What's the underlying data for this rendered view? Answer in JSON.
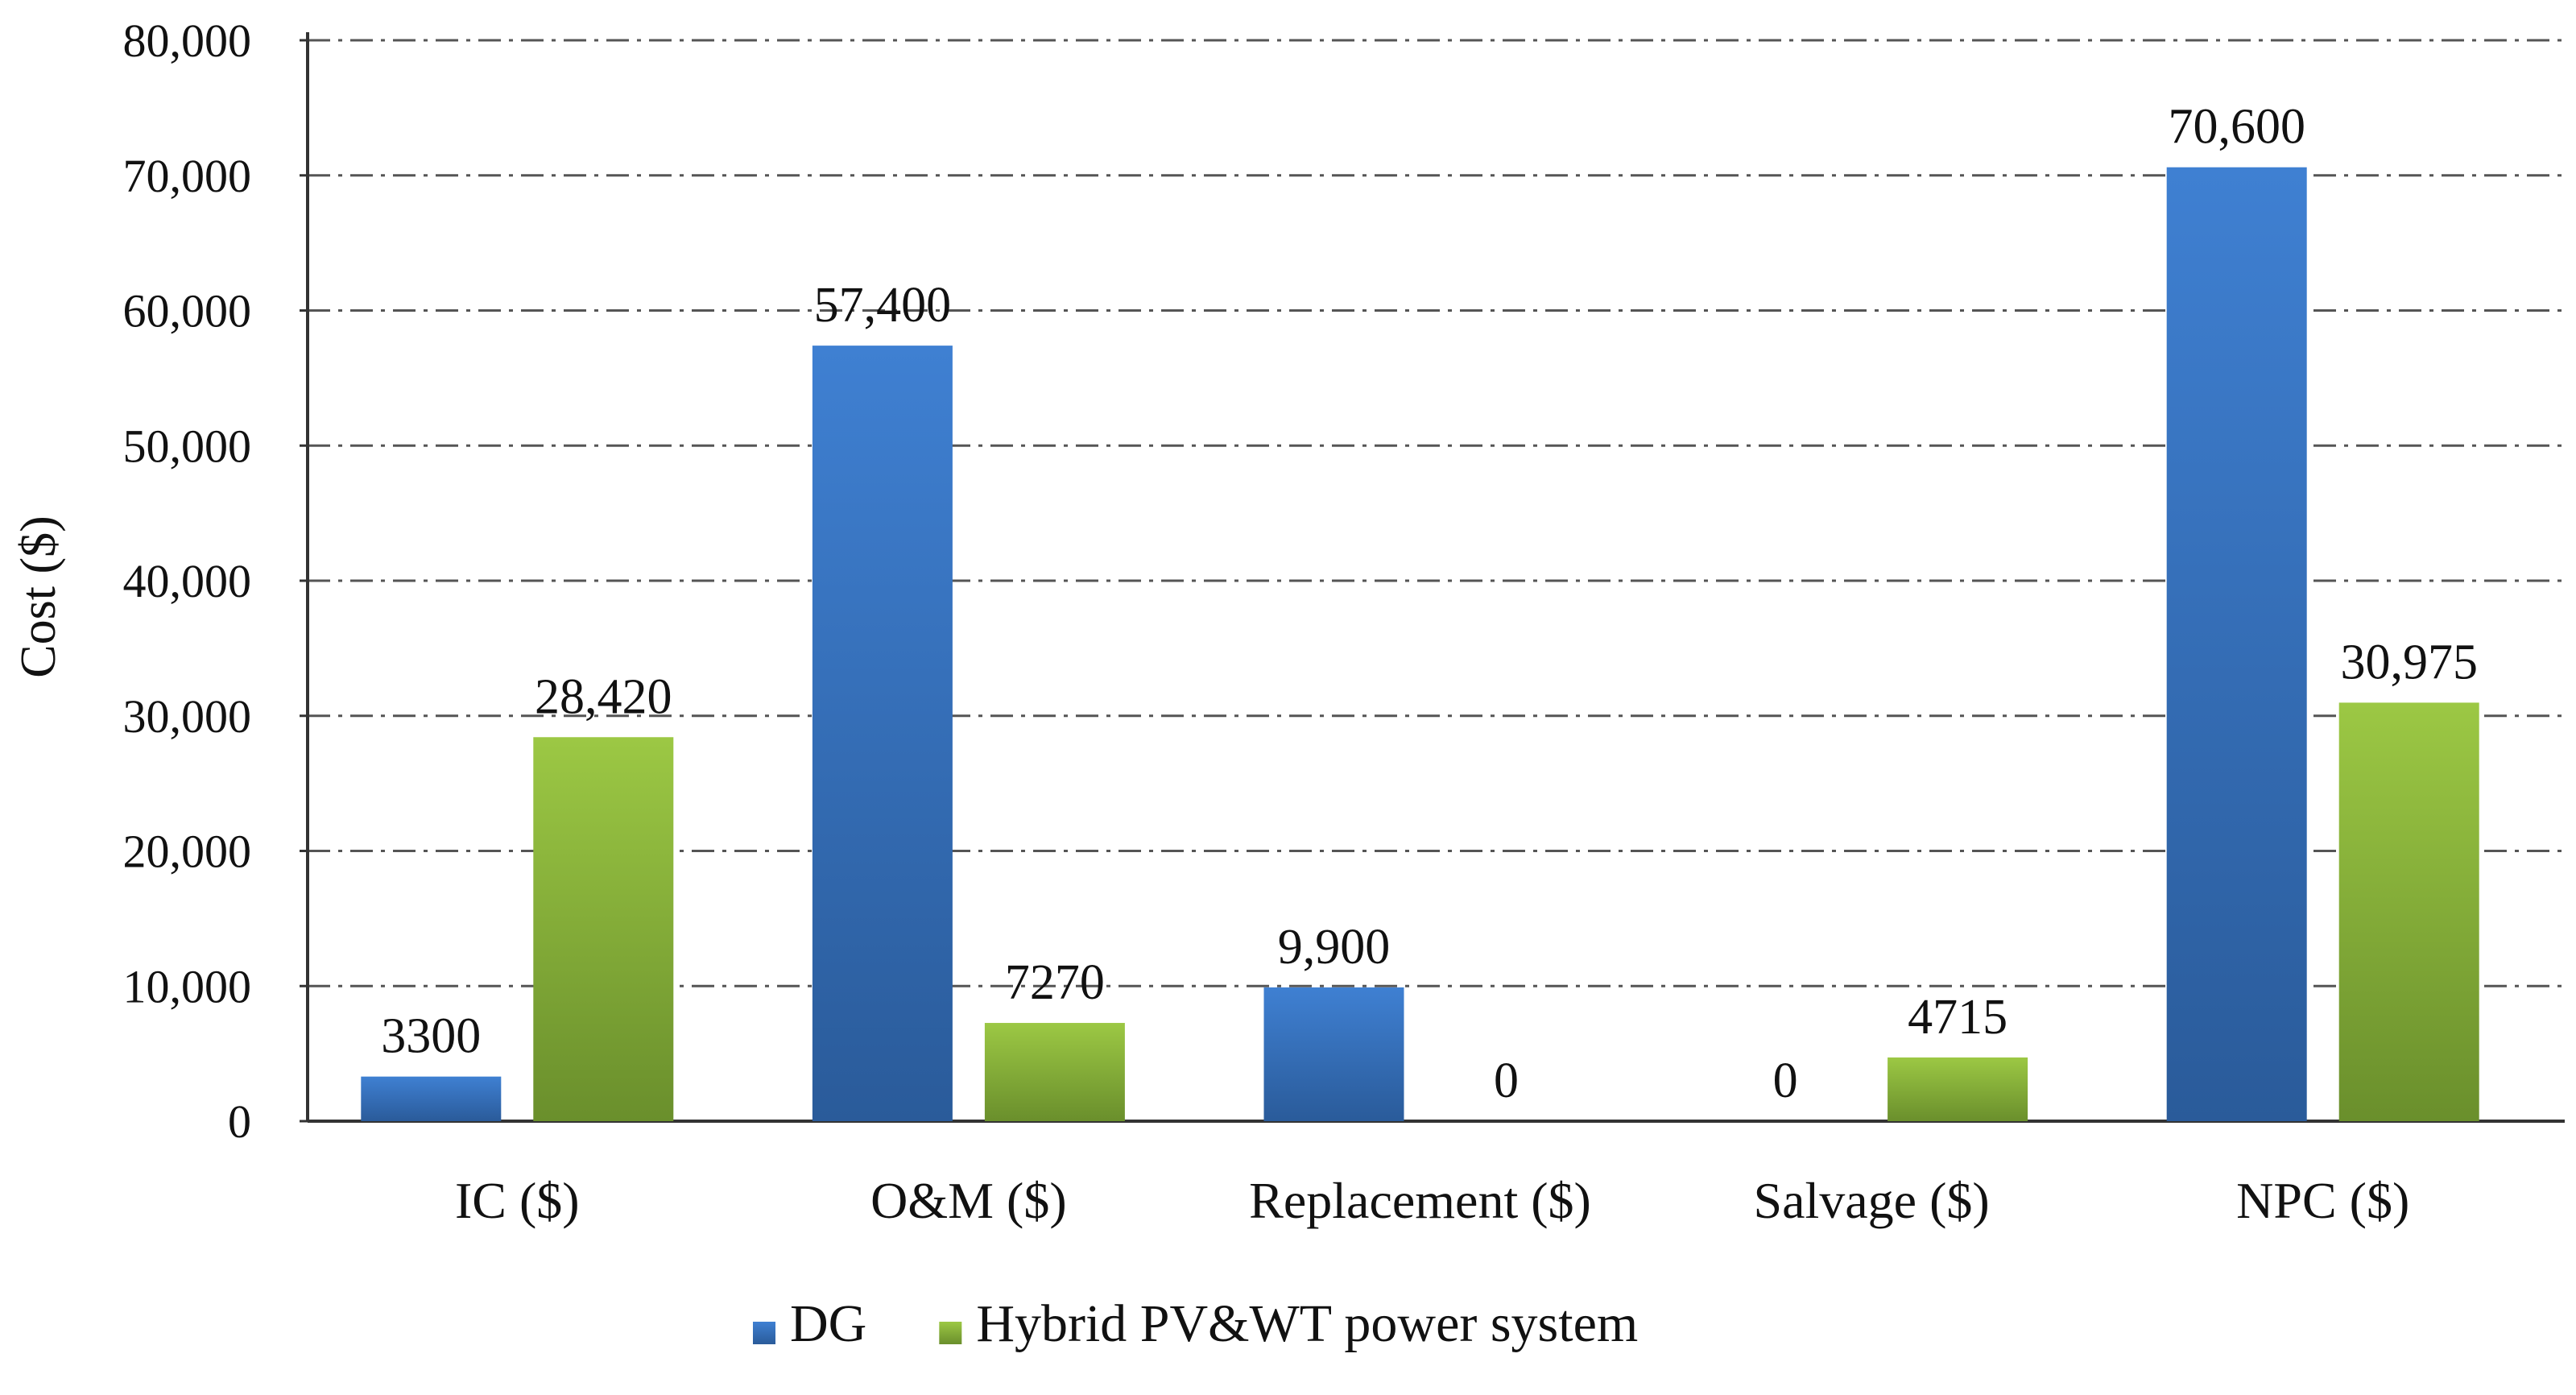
{
  "chart_data": {
    "type": "bar",
    "title": "",
    "xlabel": "",
    "ylabel": "Cost ($)",
    "ylim": [
      0,
      80000
    ],
    "yticks": [
      0,
      10000,
      20000,
      30000,
      40000,
      50000,
      60000,
      70000,
      80000
    ],
    "ytick_labels": [
      "0",
      "10,000",
      "20,000",
      "30,000",
      "40,000",
      "50,000",
      "60,000",
      "70,000",
      "80,000"
    ],
    "grid": true,
    "legend_position": "bottom-center",
    "categories": [
      "IC ($)",
      "O&M ($)",
      "Replacement ($)",
      "Salvage ($)",
      "NPC ($)"
    ],
    "series": [
      {
        "name": "DG",
        "color": "#3a75c4",
        "values": [
          3300,
          57400,
          9900,
          0,
          70600
        ],
        "labels": [
          "3300",
          "57,400",
          "9,900",
          "0",
          "70,600"
        ]
      },
      {
        "name": "Hybrid PV&WT power system",
        "color": "#8fba3a",
        "values": [
          28420,
          7270,
          0,
          4715,
          30975
        ],
        "labels": [
          "28,420",
          "7270",
          "0",
          "4715",
          "30,975"
        ]
      }
    ]
  }
}
